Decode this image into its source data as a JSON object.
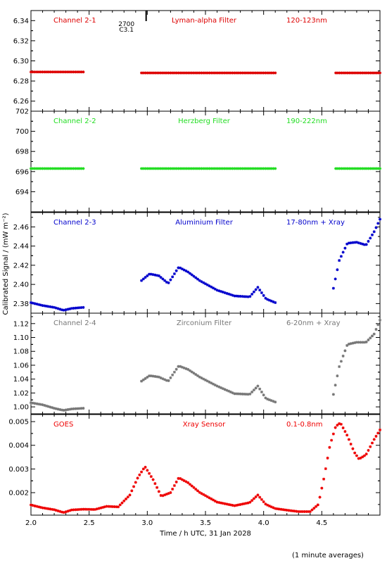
{
  "figure": {
    "ylabel_shared": "Calibrated Signal / (mW m⁻²)",
    "xlabel": "Time / h UTC, 31 Jan 2028",
    "footnote": "(1 minute averages)",
    "xticks": [
      "2.0",
      "2.5",
      "3.0",
      "3.5",
      "4.0",
      "4.5"
    ],
    "marker": {
      "label_top": "2700",
      "label_bottom": "C3.1",
      "x": 2.99
    }
  },
  "chart_data": [
    {
      "type": "scatter",
      "channel": "Channel 2-1",
      "filter": "Lyman-alpha Filter",
      "band": "120-123nm",
      "color": "#dd0000",
      "ylim": [
        6.25,
        6.35
      ],
      "yticks": [
        "6.26",
        "6.28",
        "6.30",
        "6.32",
        "6.34"
      ],
      "segments": [
        {
          "x": [
            2.0,
            2.1,
            2.2,
            2.3,
            2.45
          ],
          "y": [
            6.289,
            6.289,
            6.289,
            6.289,
            6.289
          ]
        },
        {
          "x": [
            2.95,
            3.2,
            3.5,
            3.8,
            4.1
          ],
          "y": [
            6.288,
            6.288,
            6.288,
            6.288,
            6.288
          ]
        },
        {
          "x": [
            4.62,
            4.75,
            4.9,
            5.0
          ],
          "y": [
            6.288,
            6.288,
            6.288,
            6.288
          ]
        }
      ]
    },
    {
      "type": "scatter",
      "channel": "Channel 2-2",
      "filter": "Herzberg Filter",
      "band": "190-222nm",
      "color": "#22dd22",
      "ylim": [
        692,
        702
      ],
      "yticks": [
        "694",
        "696",
        "698",
        "700",
        "702"
      ],
      "segments": [
        {
          "x": [
            2.0,
            2.2,
            2.45
          ],
          "y": [
            696.3,
            696.3,
            696.3
          ]
        },
        {
          "x": [
            2.95,
            3.5,
            4.1
          ],
          "y": [
            696.3,
            696.3,
            696.3
          ]
        },
        {
          "x": [
            4.62,
            4.8,
            5.0
          ],
          "y": [
            696.3,
            696.3,
            696.3
          ]
        }
      ]
    },
    {
      "type": "scatter",
      "channel": "Channel 2-3",
      "filter": "Aluminium Filter",
      "band": "17-80nm + Xray",
      "color": "#0000cc",
      "ylim": [
        2.37,
        2.475
      ],
      "yticks": [
        "2.38",
        "2.40",
        "2.42",
        "2.44",
        "2.46"
      ],
      "segments": [
        {
          "x": [
            2.0,
            2.1,
            2.2,
            2.28,
            2.35,
            2.45
          ],
          "y": [
            2.381,
            2.378,
            2.376,
            2.373,
            2.375,
            2.376
          ]
        },
        {
          "x": [
            2.95,
            3.02,
            3.1,
            3.18,
            3.27,
            3.35,
            3.45,
            3.6,
            3.75,
            3.88,
            3.95,
            4.02,
            4.1
          ],
          "y": [
            2.404,
            2.411,
            2.409,
            2.401,
            2.418,
            2.413,
            2.404,
            2.394,
            2.388,
            2.387,
            2.397,
            2.385,
            2.381
          ]
        },
        {
          "x": [
            4.6,
            4.65,
            4.72,
            4.8,
            4.88,
            4.95,
            5.0
          ],
          "y": [
            2.396,
            2.425,
            2.443,
            2.444,
            2.441,
            2.455,
            2.468
          ]
        }
      ]
    },
    {
      "type": "scatter",
      "channel": "Channel 2-4",
      "filter": "Zirconium Filter",
      "band": "6-20nm + Xray",
      "color": "#777777",
      "ylim": [
        0.99,
        1.135
      ],
      "yticks": [
        "1.00",
        "1.02",
        "1.04",
        "1.06",
        "1.08",
        "1.10",
        "1.12"
      ],
      "segments": [
        {
          "x": [
            2.0,
            2.1,
            2.2,
            2.28,
            2.35,
            2.45
          ],
          "y": [
            1.006,
            1.003,
            0.998,
            0.995,
            0.997,
            0.998
          ]
        },
        {
          "x": [
            2.95,
            3.02,
            3.1,
            3.18,
            3.27,
            3.35,
            3.45,
            3.6,
            3.75,
            3.88,
            3.95,
            4.02,
            4.1
          ],
          "y": [
            1.037,
            1.045,
            1.043,
            1.037,
            1.059,
            1.054,
            1.043,
            1.03,
            1.019,
            1.018,
            1.03,
            1.012,
            1.007
          ]
        },
        {
          "x": [
            4.6,
            4.65,
            4.72,
            4.8,
            4.88,
            4.95,
            5.0
          ],
          "y": [
            1.018,
            1.058,
            1.09,
            1.093,
            1.093,
            1.105,
            1.125
          ]
        }
      ]
    },
    {
      "type": "scatter",
      "channel": "GOES",
      "filter": "Xray Sensor",
      "band": "0.1-0.8nm",
      "color": "#ee0000",
      "ylim": [
        0.00105,
        0.0053
      ],
      "yticks": [
        "0.002",
        "0.003",
        "0.004",
        "0.005"
      ],
      "segments": [
        {
          "x": [
            2.0,
            2.1,
            2.2,
            2.28,
            2.35,
            2.45,
            2.55,
            2.65,
            2.75,
            2.85,
            2.92,
            2.98,
            3.05,
            3.12,
            3.2,
            3.27,
            3.35,
            3.45,
            3.6,
            3.75,
            3.88,
            3.95,
            4.02,
            4.1,
            4.2,
            4.3,
            4.4,
            4.47,
            4.52,
            4.57,
            4.62,
            4.66,
            4.72,
            4.78,
            4.82,
            4.88,
            4.95,
            5.0
          ],
          "y": [
            0.00148,
            0.00136,
            0.00128,
            0.00116,
            0.00127,
            0.0013,
            0.00129,
            0.00142,
            0.0014,
            0.0019,
            0.00265,
            0.0031,
            0.00255,
            0.00185,
            0.002,
            0.00263,
            0.00242,
            0.00201,
            0.0016,
            0.00145,
            0.00158,
            0.0019,
            0.0015,
            0.00133,
            0.00126,
            0.0012,
            0.0012,
            0.0015,
            0.00265,
            0.004,
            0.0048,
            0.00495,
            0.0044,
            0.0037,
            0.00342,
            0.0036,
            0.00425,
            0.00465
          ]
        }
      ]
    }
  ]
}
